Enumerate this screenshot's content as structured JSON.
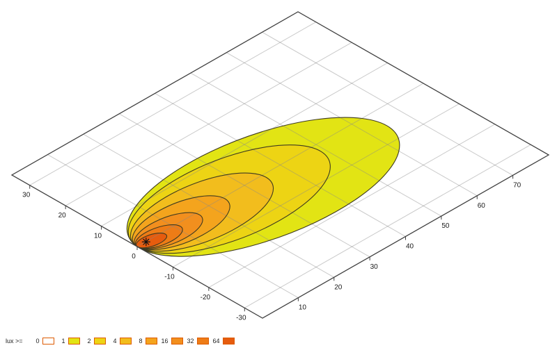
{
  "chart_data": {
    "type": "contour",
    "description": "isolux contour plot on tilted ground plane",
    "x_axis": {
      "range": [
        0,
        80
      ],
      "ticks": [
        10,
        20,
        30,
        40,
        50,
        60,
        70
      ]
    },
    "y_axis": {
      "range": [
        -35,
        35
      ],
      "ticks": [
        30,
        20,
        10,
        0,
        -10,
        -20,
        -30
      ]
    },
    "grid": true,
    "grid_color": "#8a8a8a",
    "grid_opacity": 0.45,
    "axis_color": "#404040",
    "contour_line_color": "#3e3a20",
    "marker": {
      "symbol": "asterisk",
      "x": 2.4,
      "y": -0.1,
      "color": "#111111"
    },
    "contours": [
      {
        "lux": 1,
        "color": "#e2e414",
        "extent": 64.5,
        "tip_y": -6.0,
        "half_width": 16.0
      },
      {
        "lux": 2,
        "color": "#edd414",
        "extent": 49.0,
        "tip_y": -2.5,
        "half_width": 12.2
      },
      {
        "lux": 4,
        "color": "#f2bd1d",
        "extent": 35.0,
        "tip_y": -1.2,
        "half_width": 8.7
      },
      {
        "lux": 8,
        "color": "#f4a41d",
        "extent": 24.0,
        "tip_y": -0.6,
        "half_width": 6.0
      },
      {
        "lux": 16,
        "color": "#f28f1e",
        "extent": 16.5,
        "tip_y": -1.0,
        "half_width": 4.1
      },
      {
        "lux": 32,
        "color": "#ee7c16",
        "extent": 11.0,
        "tip_y": -1.2,
        "half_width": 2.8
      },
      {
        "lux": 64,
        "color": "#e65c0e",
        "extent": 7.0,
        "tip_y": -1.0,
        "half_width": 1.8
      }
    ],
    "legend": {
      "title": "lux >=",
      "swatch_border": "#dd5a00",
      "levels": [
        {
          "lux": 0,
          "color": "#ffffff"
        },
        {
          "lux": 1,
          "color": "#e2e414"
        },
        {
          "lux": 2,
          "color": "#edd414"
        },
        {
          "lux": 4,
          "color": "#f2bd1d"
        },
        {
          "lux": 8,
          "color": "#f4a41d"
        },
        {
          "lux": 16,
          "color": "#f28f1e"
        },
        {
          "lux": 32,
          "color": "#ee7c16"
        },
        {
          "lux": 64,
          "color": "#e65c0e"
        }
      ]
    }
  }
}
